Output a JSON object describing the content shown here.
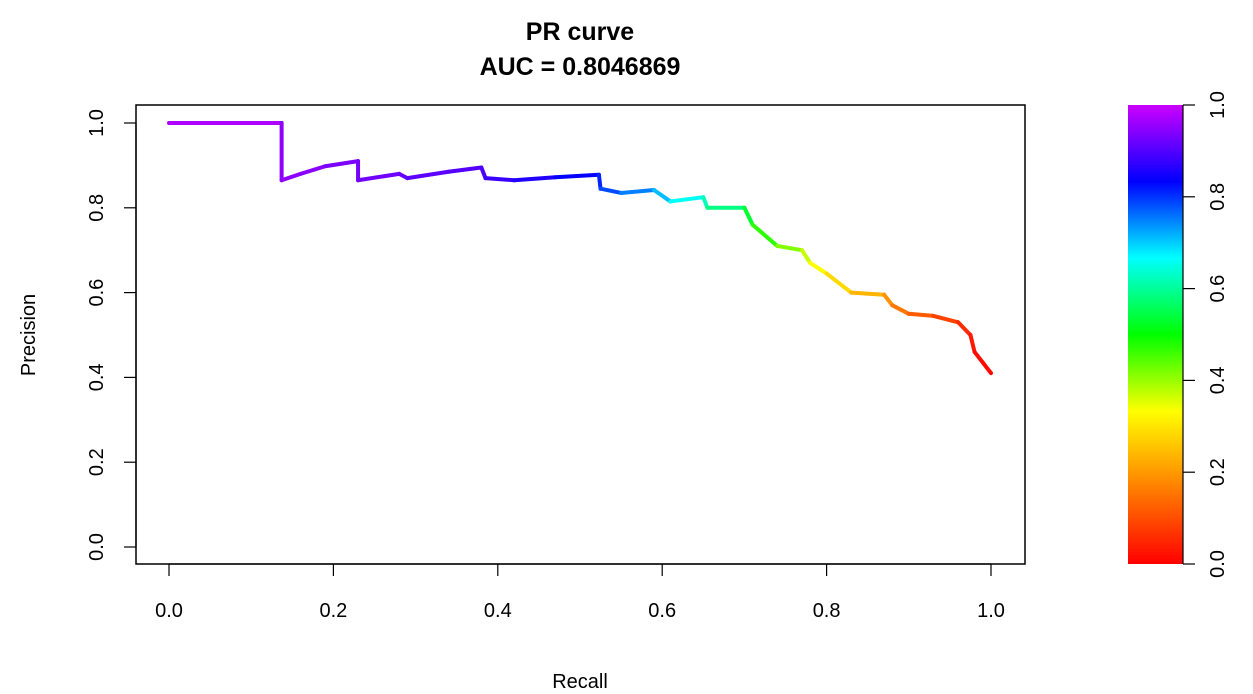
{
  "chart_data": {
    "type": "line",
    "title": "PR curve",
    "subtitle": "AUC = 0.8046869",
    "xlabel": "Recall",
    "ylabel": "Precision",
    "xlim": [
      0,
      1
    ],
    "ylim": [
      0,
      1
    ],
    "x_ticks": [
      0.0,
      0.2,
      0.4,
      0.6,
      0.8,
      1.0
    ],
    "x_tick_labels": [
      "0.0",
      "0.2",
      "0.4",
      "0.6",
      "0.8",
      "1.0"
    ],
    "y_ticks": [
      0.0,
      0.2,
      0.4,
      0.6,
      0.8,
      1.0
    ],
    "y_tick_labels": [
      "0.0",
      "0.2",
      "0.4",
      "0.6",
      "0.8",
      "1.0"
    ],
    "grid": false,
    "colorbar": {
      "range": [
        0,
        1
      ],
      "ticks": [
        0.0,
        0.2,
        0.4,
        0.6,
        0.8,
        1.0
      ],
      "tick_labels": [
        "0.0",
        "0.2",
        "0.4",
        "0.6",
        "0.8",
        "1.0"
      ],
      "colormap": "rainbow",
      "colors": [
        "#ff0000",
        "#ff8000",
        "#ffff00",
        "#00ff00",
        "#00ffff",
        "#0000ff",
        "#cc00ff"
      ]
    },
    "series": [
      {
        "points": [
          [
            0.0,
            1.0,
            1.0
          ],
          [
            0.137,
            1.0,
            0.95
          ],
          [
            0.137,
            0.865,
            0.95
          ],
          [
            0.16,
            0.88,
            0.95
          ],
          [
            0.19,
            0.898,
            0.94
          ],
          [
            0.23,
            0.91,
            0.93
          ],
          [
            0.23,
            0.865,
            0.93
          ],
          [
            0.28,
            0.88,
            0.92
          ],
          [
            0.29,
            0.87,
            0.915
          ],
          [
            0.34,
            0.885,
            0.905
          ],
          [
            0.38,
            0.895,
            0.9
          ],
          [
            0.385,
            0.87,
            0.89
          ],
          [
            0.42,
            0.865,
            0.87
          ],
          [
            0.47,
            0.872,
            0.85
          ],
          [
            0.523,
            0.878,
            0.82
          ],
          [
            0.525,
            0.845,
            0.8
          ],
          [
            0.55,
            0.835,
            0.77
          ],
          [
            0.59,
            0.842,
            0.73
          ],
          [
            0.61,
            0.815,
            0.69
          ],
          [
            0.65,
            0.825,
            0.63
          ],
          [
            0.655,
            0.8,
            0.61
          ],
          [
            0.7,
            0.8,
            0.56
          ],
          [
            0.71,
            0.76,
            0.5
          ],
          [
            0.74,
            0.71,
            0.44
          ],
          [
            0.77,
            0.7,
            0.39
          ],
          [
            0.78,
            0.67,
            0.35
          ],
          [
            0.8,
            0.645,
            0.31
          ],
          [
            0.83,
            0.6,
            0.26
          ],
          [
            0.87,
            0.595,
            0.21
          ],
          [
            0.88,
            0.57,
            0.17
          ],
          [
            0.9,
            0.55,
            0.14
          ],
          [
            0.93,
            0.545,
            0.1
          ],
          [
            0.96,
            0.53,
            0.07
          ],
          [
            0.975,
            0.5,
            0.04
          ],
          [
            0.98,
            0.46,
            0.025
          ],
          [
            1.0,
            0.41,
            0.0
          ]
        ]
      }
    ]
  }
}
